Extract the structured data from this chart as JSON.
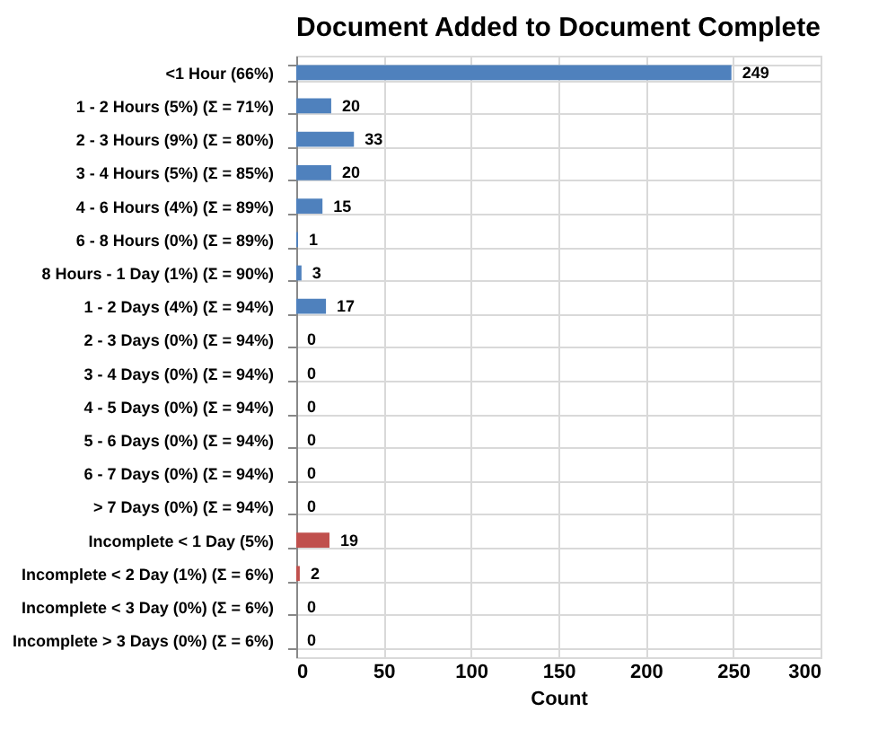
{
  "chart_data": {
    "type": "bar",
    "orientation": "horizontal",
    "title": "Document Added to Document Complete",
    "xlabel": "Count",
    "categories": [
      "<1 Hour (66%)",
      "1 - 2 Hours (5%) (Σ = 71%)",
      "2 - 3 Hours (9%) (Σ = 80%)",
      "3 - 4 Hours (5%) (Σ = 85%)",
      "4 - 6 Hours (4%) (Σ = 89%)",
      "6 - 8 Hours (0%) (Σ = 89%)",
      "8 Hours - 1 Day (1%) (Σ = 90%)",
      "1 - 2 Days (4%) (Σ = 94%)",
      "2 - 3 Days (0%) (Σ = 94%)",
      "3 - 4 Days (0%) (Σ = 94%)",
      "4 - 5 Days (0%) (Σ = 94%)",
      "5 - 6 Days (0%) (Σ = 94%)",
      "6 - 7 Days (0%) (Σ = 94%)",
      "> 7 Days (0%) (Σ = 94%)",
      "Incomplete  < 1 Day (5%)",
      "Incomplete  < 2 Day (1%) (Σ = 6%)",
      "Incomplete  < 3 Day (0%) (Σ = 6%)",
      "Incomplete > 3 Days (0%) (Σ = 6%)"
    ],
    "values": [
      249,
      20,
      33,
      20,
      15,
      1,
      3,
      17,
      0,
      0,
      0,
      0,
      0,
      0,
      19,
      2,
      0,
      0
    ],
    "colors": [
      "#4f81bd",
      "#4f81bd",
      "#4f81bd",
      "#4f81bd",
      "#4f81bd",
      "#4f81bd",
      "#4f81bd",
      "#4f81bd",
      "#4f81bd",
      "#4f81bd",
      "#4f81bd",
      "#4f81bd",
      "#4f81bd",
      "#4f81bd",
      "#c0504d",
      "#c0504d",
      "#c0504d",
      "#c0504d"
    ],
    "xlim": [
      0,
      300
    ],
    "xticks": [
      0,
      50,
      100,
      150,
      200,
      250,
      300
    ],
    "grid": true,
    "data_labels": true
  }
}
